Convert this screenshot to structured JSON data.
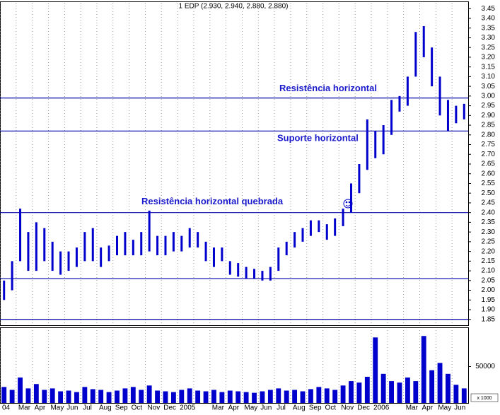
{
  "chart_data": {
    "type": "hilo",
    "title": "1 EDP (2.930, 2.940, 2.880, 2.880)",
    "categories": [
      "04",
      null,
      "Mar",
      null,
      "Apr",
      null,
      "May",
      null,
      "Jun",
      null,
      "Jul",
      null,
      "Aug",
      null,
      "Sep",
      null,
      "Oct",
      null,
      "Nov",
      null,
      "Dec",
      null,
      "2005",
      null,
      null,
      null,
      "Mar",
      null,
      "Apr",
      null,
      "May",
      null,
      "Jun",
      null,
      "Jul",
      null,
      "Aug",
      null,
      "Sep",
      null,
      "Oct",
      null,
      "Nov",
      null,
      "Dec",
      null,
      "2006",
      null,
      null,
      null,
      "Mar",
      null,
      "Apr",
      null,
      "May",
      null,
      "Jun",
      null
    ],
    "series": [
      {
        "name": "High",
        "color": "#0000cc",
        "values": [
          2.05,
          2.15,
          2.42,
          2.3,
          2.35,
          2.32,
          2.25,
          2.2,
          2.2,
          2.22,
          2.3,
          2.32,
          2.22,
          2.23,
          2.28,
          2.3,
          2.26,
          2.3,
          2.41,
          2.28,
          2.28,
          2.3,
          2.28,
          2.32,
          2.3,
          2.25,
          2.22,
          2.22,
          2.15,
          2.14,
          2.12,
          2.11,
          2.1,
          2.12,
          2.22,
          2.25,
          2.3,
          2.32,
          2.36,
          2.36,
          2.34,
          2.37,
          2.42,
          2.55,
          2.65,
          2.88,
          2.82,
          2.85,
          2.98,
          3.0,
          3.1,
          3.33,
          3.36,
          3.25,
          3.1,
          2.98,
          2.95,
          2.96
        ]
      },
      {
        "name": "Low",
        "color": "#0000cc",
        "values": [
          1.95,
          2.0,
          2.15,
          2.1,
          2.1,
          2.15,
          2.1,
          2.08,
          2.1,
          2.12,
          2.15,
          2.15,
          2.12,
          2.15,
          2.18,
          2.18,
          2.18,
          2.18,
          2.2,
          2.18,
          2.18,
          2.2,
          2.2,
          2.22,
          2.22,
          2.15,
          2.12,
          2.15,
          2.08,
          2.07,
          2.06,
          2.06,
          2.05,
          2.05,
          2.1,
          2.18,
          2.22,
          2.25,
          2.28,
          2.3,
          2.26,
          2.28,
          2.33,
          2.4,
          2.5,
          2.62,
          2.68,
          2.7,
          2.8,
          2.92,
          2.95,
          3.1,
          3.2,
          3.05,
          2.9,
          2.82,
          2.86,
          2.88
        ]
      }
    ],
    "ylim": [
      1.82,
      3.48
    ],
    "yticks": [
      1.85,
      {
        "value": 1.9,
        "label": "1.90"
      },
      1.95,
      {
        "value": 2.0,
        "label": "2.00"
      },
      2.05,
      {
        "value": 2.1,
        "label": "2.10"
      },
      2.15,
      {
        "value": 2.2,
        "label": "2.20"
      },
      2.25,
      {
        "value": 2.3,
        "label": "2.30"
      },
      2.35,
      {
        "value": 2.4,
        "label": "2.40"
      },
      2.45,
      {
        "value": 2.5,
        "label": "2.50"
      },
      2.55,
      {
        "value": 2.6,
        "label": "2.60"
      },
      2.65,
      {
        "value": 2.7,
        "label": "2.70"
      },
      2.75,
      {
        "value": 2.8,
        "label": "2.80"
      },
      2.85,
      {
        "value": 2.9,
        "label": "2.90"
      },
      2.95,
      {
        "value": 3.0,
        "label": "3.00"
      },
      3.05,
      {
        "value": 3.1,
        "label": "3.10"
      },
      3.15,
      {
        "value": 3.2,
        "label": "3.20"
      },
      3.25,
      {
        "value": 3.3,
        "label": "3.30"
      },
      3.35,
      {
        "value": 3.4,
        "label": "3.40"
      },
      3.45
    ],
    "hlines": [
      {
        "value": 2.99,
        "label": "Resistência horizontal"
      },
      {
        "value": 2.82,
        "label": "Suporte horizontal"
      },
      {
        "value": 2.4,
        "label": "Resistência horizontal quebrada"
      },
      {
        "value": 2.06
      },
      {
        "value": 1.85
      }
    ],
    "hline_color": "#0000aa",
    "volume": {
      "values": [
        22000,
        18000,
        35000,
        20000,
        26000,
        18000,
        20000,
        16000,
        17000,
        15000,
        22000,
        19000,
        18000,
        15000,
        17000,
        20000,
        22000,
        18000,
        24000,
        17000,
        16000,
        15000,
        18000,
        20000,
        17000,
        16000,
        18000,
        15000,
        17000,
        16000,
        15000,
        14000,
        16000,
        18000,
        20000,
        17000,
        18000,
        16000,
        19000,
        22000,
        20000,
        18000,
        24000,
        30000,
        28000,
        36000,
        90000,
        40000,
        30000,
        28000,
        35000,
        30000,
        92000,
        45000,
        55000,
        40000,
        25000,
        20000
      ],
      "color": "#0000cc",
      "ylim": [
        0,
        100000
      ],
      "yticks": [
        50000
      ],
      "unit": "x 1000"
    },
    "grid": true
  }
}
